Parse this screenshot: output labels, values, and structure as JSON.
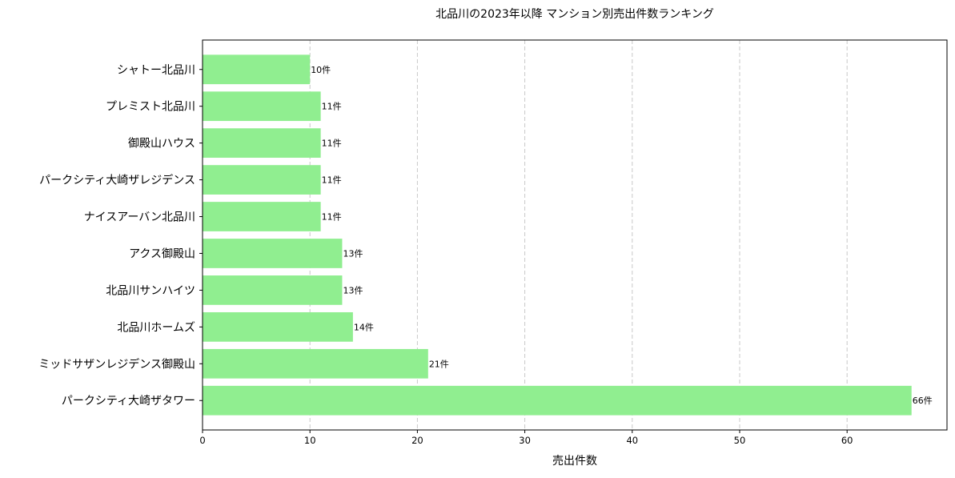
{
  "chart_data": {
    "type": "bar",
    "orientation": "horizontal",
    "title": "北品川の2023年以降 マンション別売出件数ランキング",
    "xlabel": "売出件数",
    "ylabel": "",
    "categories": [
      "シャトー北品川",
      "プレミスト北品川",
      "御殿山ハウス",
      "パークシティ大崎ザレジデンス",
      "ナイスアーバン北品川",
      "アクス御殿山",
      "北品川サンハイツ",
      "北品川ホームズ",
      "ミッドサザンレジデンス御殿山",
      "パークシティ大崎ザタワー"
    ],
    "values": [
      10,
      11,
      11,
      11,
      11,
      13,
      13,
      14,
      21,
      66
    ],
    "value_suffix": "件",
    "xlim": [
      0,
      69.3
    ],
    "xticks": [
      0,
      10,
      20,
      30,
      40,
      50,
      60
    ],
    "grid": "x, dashed",
    "bar_color": "#90ee90"
  }
}
